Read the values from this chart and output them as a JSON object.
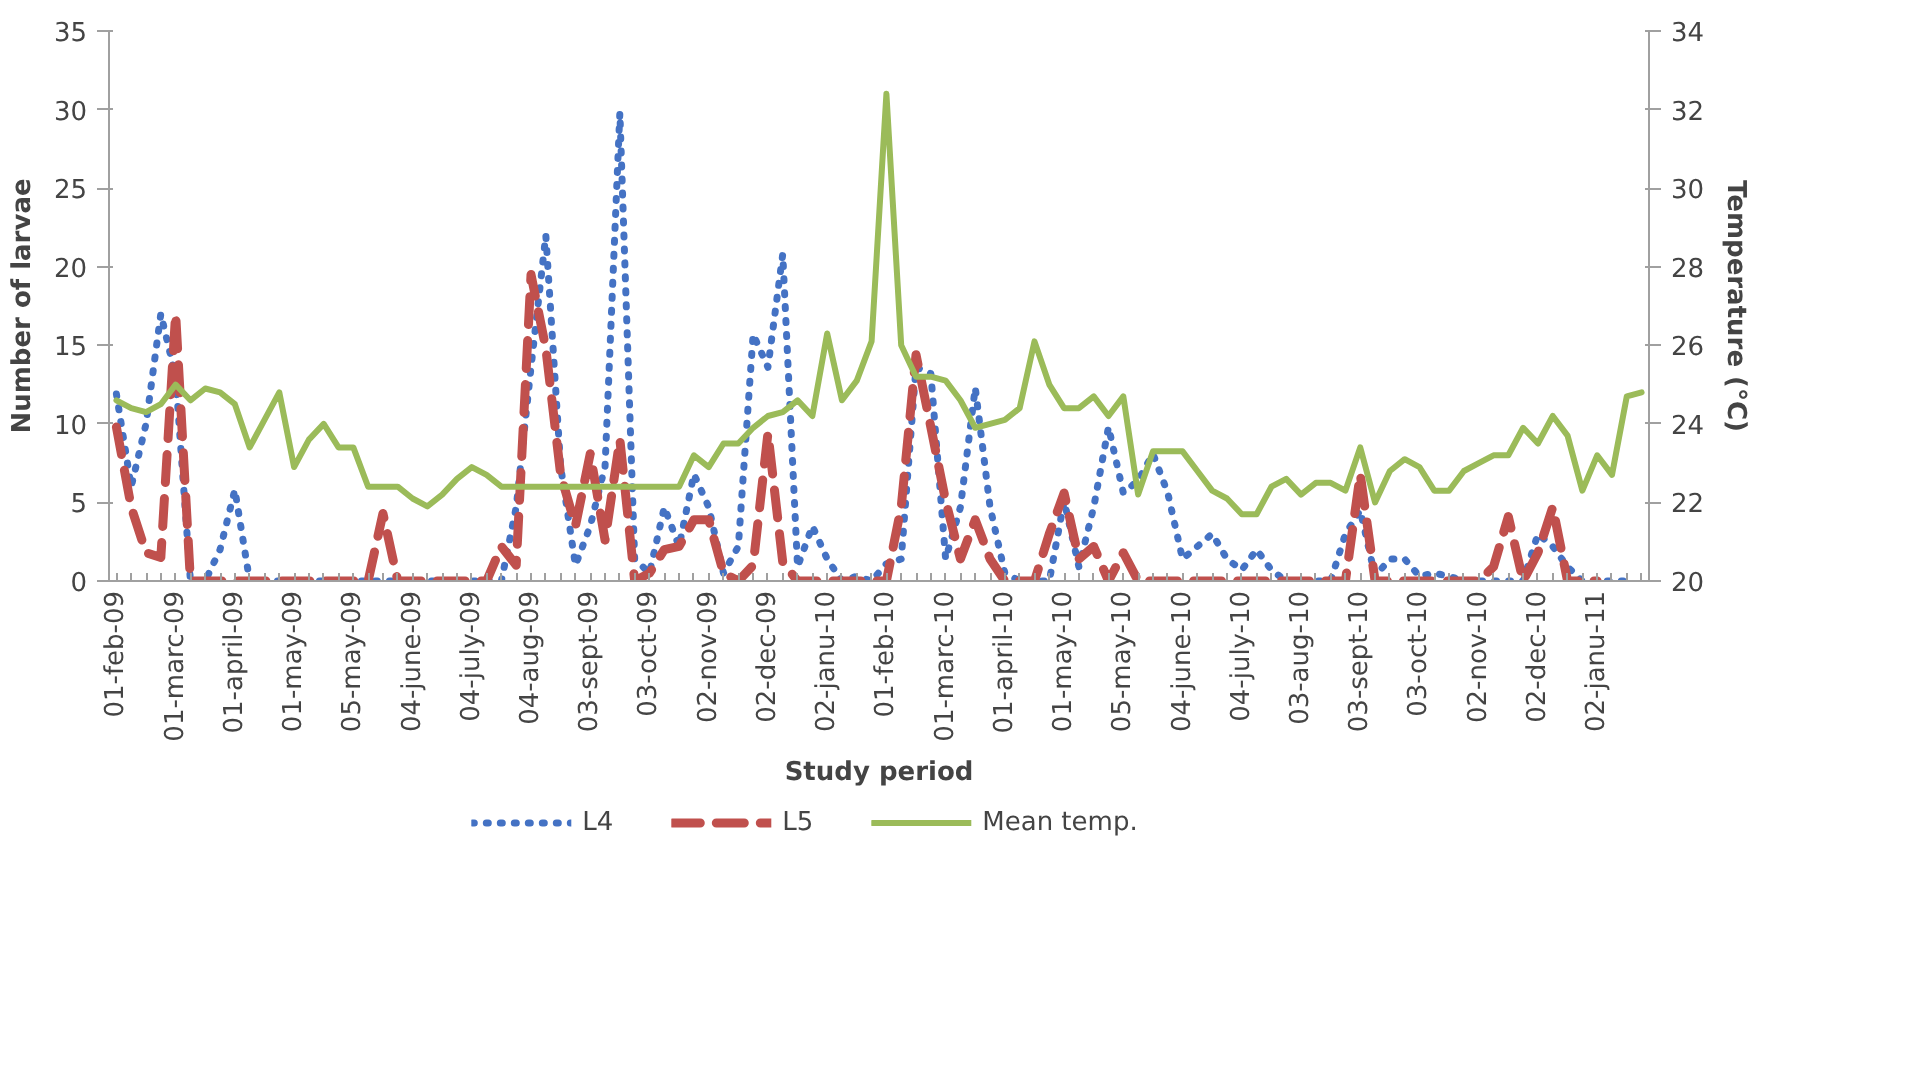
{
  "chart_data": {
    "type": "line",
    "categories": [
      "01-feb-09",
      null,
      null,
      null,
      "01-marc-09",
      null,
      null,
      null,
      "01-april-09",
      null,
      null,
      null,
      "01-may-09",
      null,
      null,
      null,
      "05-may-09",
      null,
      null,
      null,
      "04-june-09",
      null,
      null,
      null,
      "04-july-09",
      null,
      null,
      null,
      "04-aug-09",
      null,
      null,
      null,
      "03-sept-09",
      null,
      null,
      null,
      "03-oct-09",
      null,
      null,
      null,
      "02-nov-09",
      null,
      null,
      null,
      "02-dec-09",
      null,
      null,
      null,
      "02-janu-10",
      null,
      null,
      null,
      "01-feb-10",
      null,
      null,
      null,
      "01-marc-10",
      null,
      null,
      null,
      "01-april-10",
      null,
      null,
      null,
      "01-may-10",
      null,
      null,
      null,
      "05-may-10",
      null,
      null,
      null,
      "04-june-10",
      null,
      null,
      null,
      "04-july-10",
      null,
      null,
      null,
      "03-aug-10",
      null,
      null,
      null,
      "03-sept-10",
      null,
      null,
      null,
      "03-oct-10",
      null,
      null,
      null,
      "02-nov-10",
      null,
      null,
      null,
      "02-dec-10",
      null,
      null,
      null,
      "02-janu-11",
      null,
      null,
      null
    ],
    "series": [
      {
        "name": "L4",
        "color": "#4472c4",
        "line_style": "dotted",
        "values": [
          11.9,
          6,
          10,
          17,
          13,
          0,
          0,
          2,
          5.8,
          0,
          0,
          0,
          0,
          0,
          0,
          0,
          0,
          0,
          0,
          0,
          0,
          0,
          0,
          0,
          0,
          0,
          0,
          4.7,
          13.6,
          22,
          7.3,
          1,
          3.5,
          7.3,
          29.8,
          1.4,
          0.5,
          4.7,
          2.2,
          6.8,
          4.7,
          0.5,
          2.2,
          15.7,
          13.6,
          20.8,
          0.9,
          3.5,
          1.4,
          0,
          0.3,
          0,
          1.1,
          1.4,
          13.6,
          13.2,
          1.4,
          4.7,
          12.3,
          4.7,
          0.5,
          0,
          0,
          0,
          5.1,
          0.9,
          4.7,
          9.8,
          5.6,
          6.4,
          8.1,
          5.6,
          1.4,
          2.2,
          3,
          1.4,
          0.7,
          2,
          0.7,
          0,
          0,
          0,
          0,
          3,
          4.5,
          0.3,
          1.4,
          1.4,
          0.3,
          0.5,
          0.3,
          0,
          0,
          0,
          0,
          0,
          3,
          2.2,
          0.9,
          0,
          0,
          0,
          0,
          null
        ]
      },
      {
        "name": "L5",
        "color": "#c0504d",
        "line_style": "dashed",
        "values": [
          9.8,
          4.7,
          1.8,
          1.5,
          17,
          0,
          0,
          0,
          0,
          0,
          0,
          0,
          0,
          0,
          0,
          0,
          0,
          0,
          4.3,
          0,
          0,
          0,
          0,
          0,
          0,
          0,
          2.2,
          1,
          19.5,
          14.8,
          6.8,
          3.5,
          8.1,
          2.6,
          9,
          0,
          0.5,
          2,
          2.2,
          3.9,
          3.9,
          0.5,
          0,
          1,
          9.4,
          1.2,
          0,
          0,
          0,
          0,
          0,
          0,
          0,
          4.7,
          14.4,
          9.8,
          5.1,
          1.4,
          3.9,
          1.4,
          0,
          0,
          0,
          3,
          5.6,
          1.4,
          2.2,
          0,
          1.8,
          0,
          0,
          0,
          0,
          0,
          0,
          0,
          0,
          0,
          0,
          0,
          0,
          0,
          0,
          0,
          6.8,
          0,
          0,
          0,
          0,
          0,
          0,
          0,
          0,
          0.9,
          4.1,
          0,
          1.8,
          4.7,
          0,
          0,
          0,
          null,
          null,
          null
        ]
      },
      {
        "name": "Mean temp.",
        "color": "#9bbb59",
        "line_style": "solid",
        "axis": "y2",
        "values": [
          24.6,
          24.4,
          24.3,
          24.5,
          25.0,
          24.6,
          24.9,
          24.8,
          24.5,
          23.4,
          24.1,
          24.8,
          22.9,
          23.6,
          24.0,
          23.4,
          23.4,
          22.4,
          22.4,
          22.4,
          22.1,
          21.9,
          22.2,
          22.6,
          22.9,
          22.7,
          22.4,
          22.4,
          22.4,
          22.4,
          22.4,
          22.4,
          22.4,
          22.4,
          22.4,
          22.4,
          22.4,
          22.4,
          22.4,
          23.2,
          22.9,
          23.5,
          23.5,
          23.9,
          24.2,
          24.3,
          24.6,
          24.2,
          26.3,
          24.6,
          25.1,
          26.1,
          32.4,
          26.0,
          25.2,
          25.2,
          25.1,
          24.6,
          23.9,
          24.0,
          24.1,
          24.4,
          26.1,
          25.0,
          24.4,
          24.4,
          24.7,
          24.2,
          24.7,
          22.2,
          23.3,
          23.3,
          23.3,
          22.8,
          22.3,
          22.1,
          21.7,
          21.7,
          22.4,
          22.6,
          22.2,
          22.5,
          22.5,
          22.3,
          23.4,
          22.0,
          22.8,
          23.1,
          22.9,
          22.3,
          22.3,
          22.8,
          23.0,
          23.2,
          23.2,
          23.9,
          23.5,
          24.2,
          23.7,
          22.3,
          23.2,
          22.7,
          24.7,
          24.8
        ]
      }
    ],
    "xlabel": "Study period",
    "ylabel": "Number of larvae",
    "y2label": "Temperature (°C)",
    "ylim": [
      0,
      35
    ],
    "yticks": [
      0,
      5,
      10,
      15,
      20,
      25,
      30,
      35
    ],
    "y2lim": [
      20,
      34
    ],
    "y2ticks": [
      20,
      22,
      24,
      26,
      28,
      30,
      32,
      34
    ],
    "legend": "bottom",
    "grid": false
  }
}
